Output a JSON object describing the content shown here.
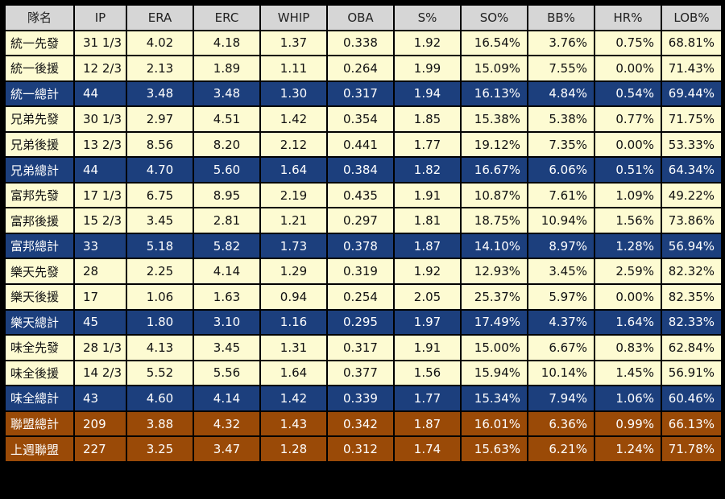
{
  "headers": [
    "隊名",
    "IP",
    "ERA",
    "ERC",
    "WHIP",
    "OBA",
    "S%",
    "SO%",
    "BB%",
    "HR%",
    "LOB%"
  ],
  "rows": [
    {
      "type": "normal",
      "cells": [
        "統一先發",
        "31 1/3",
        "4.02",
        "4.18",
        "1.37",
        "0.338",
        "1.92",
        "16.54%",
        "3.76%",
        "0.75%",
        "68.81%"
      ]
    },
    {
      "type": "normal",
      "cells": [
        "統一後援",
        "12 2/3",
        "2.13",
        "1.89",
        "1.11",
        "0.264",
        "1.99",
        "15.09%",
        "7.55%",
        "0.00%",
        "71.43%"
      ]
    },
    {
      "type": "total",
      "cells": [
        "統一總計",
        "44",
        "3.48",
        "3.48",
        "1.30",
        "0.317",
        "1.94",
        "16.13%",
        "4.84%",
        "0.54%",
        "69.44%"
      ]
    },
    {
      "type": "normal",
      "cells": [
        "兄弟先發",
        "30 1/3",
        "2.97",
        "4.51",
        "1.42",
        "0.354",
        "1.85",
        "15.38%",
        "5.38%",
        "0.77%",
        "71.75%"
      ]
    },
    {
      "type": "normal",
      "cells": [
        "兄弟後援",
        "13 2/3",
        "8.56",
        "8.20",
        "2.12",
        "0.441",
        "1.77",
        "19.12%",
        "7.35%",
        "0.00%",
        "53.33%"
      ]
    },
    {
      "type": "total",
      "cells": [
        "兄弟總計",
        "44",
        "4.70",
        "5.60",
        "1.64",
        "0.384",
        "1.82",
        "16.67%",
        "6.06%",
        "0.51%",
        "64.34%"
      ]
    },
    {
      "type": "normal",
      "cells": [
        "富邦先發",
        "17 1/3",
        "6.75",
        "8.95",
        "2.19",
        "0.435",
        "1.91",
        "10.87%",
        "7.61%",
        "1.09%",
        "49.22%"
      ]
    },
    {
      "type": "normal",
      "cells": [
        "富邦後援",
        "15 2/3",
        "3.45",
        "2.81",
        "1.21",
        "0.297",
        "1.81",
        "18.75%",
        "10.94%",
        "1.56%",
        "73.86%"
      ]
    },
    {
      "type": "total",
      "cells": [
        "富邦總計",
        "33",
        "5.18",
        "5.82",
        "1.73",
        "0.378",
        "1.87",
        "14.10%",
        "8.97%",
        "1.28%",
        "56.94%"
      ]
    },
    {
      "type": "normal",
      "cells": [
        "樂天先發",
        "28",
        "2.25",
        "4.14",
        "1.29",
        "0.319",
        "1.92",
        "12.93%",
        "3.45%",
        "2.59%",
        "82.32%"
      ]
    },
    {
      "type": "normal",
      "cells": [
        "樂天後援",
        "17",
        "1.06",
        "1.63",
        "0.94",
        "0.254",
        "2.05",
        "25.37%",
        "5.97%",
        "0.00%",
        "82.35%"
      ]
    },
    {
      "type": "total",
      "cells": [
        "樂天總計",
        "45",
        "1.80",
        "3.10",
        "1.16",
        "0.295",
        "1.97",
        "17.49%",
        "4.37%",
        "1.64%",
        "82.33%"
      ]
    },
    {
      "type": "normal",
      "cells": [
        "味全先發",
        "28 1/3",
        "4.13",
        "3.45",
        "1.31",
        "0.317",
        "1.91",
        "15.00%",
        "6.67%",
        "0.83%",
        "62.84%"
      ]
    },
    {
      "type": "normal",
      "cells": [
        "味全後援",
        "14 2/3",
        "5.52",
        "5.56",
        "1.64",
        "0.377",
        "1.56",
        "15.94%",
        "10.14%",
        "1.45%",
        "56.91%"
      ]
    },
    {
      "type": "total",
      "cells": [
        "味全總計",
        "43",
        "4.60",
        "4.14",
        "1.42",
        "0.339",
        "1.77",
        "15.34%",
        "7.94%",
        "1.06%",
        "60.46%"
      ]
    },
    {
      "type": "league",
      "cells": [
        "聯盟總計",
        "209",
        "3.88",
        "4.32",
        "1.43",
        "0.342",
        "1.87",
        "16.01%",
        "6.36%",
        "0.99%",
        "66.13%"
      ]
    },
    {
      "type": "league",
      "cells": [
        "上週聯盟",
        "227",
        "3.25",
        "3.47",
        "1.28",
        "0.312",
        "1.74",
        "15.63%",
        "6.21%",
        "1.24%",
        "71.78%"
      ]
    }
  ],
  "colors": {
    "header": "#d6d6d6",
    "normal": "#fdfbd2",
    "total": "#1c3f7d",
    "league": "#9a4a07"
  }
}
